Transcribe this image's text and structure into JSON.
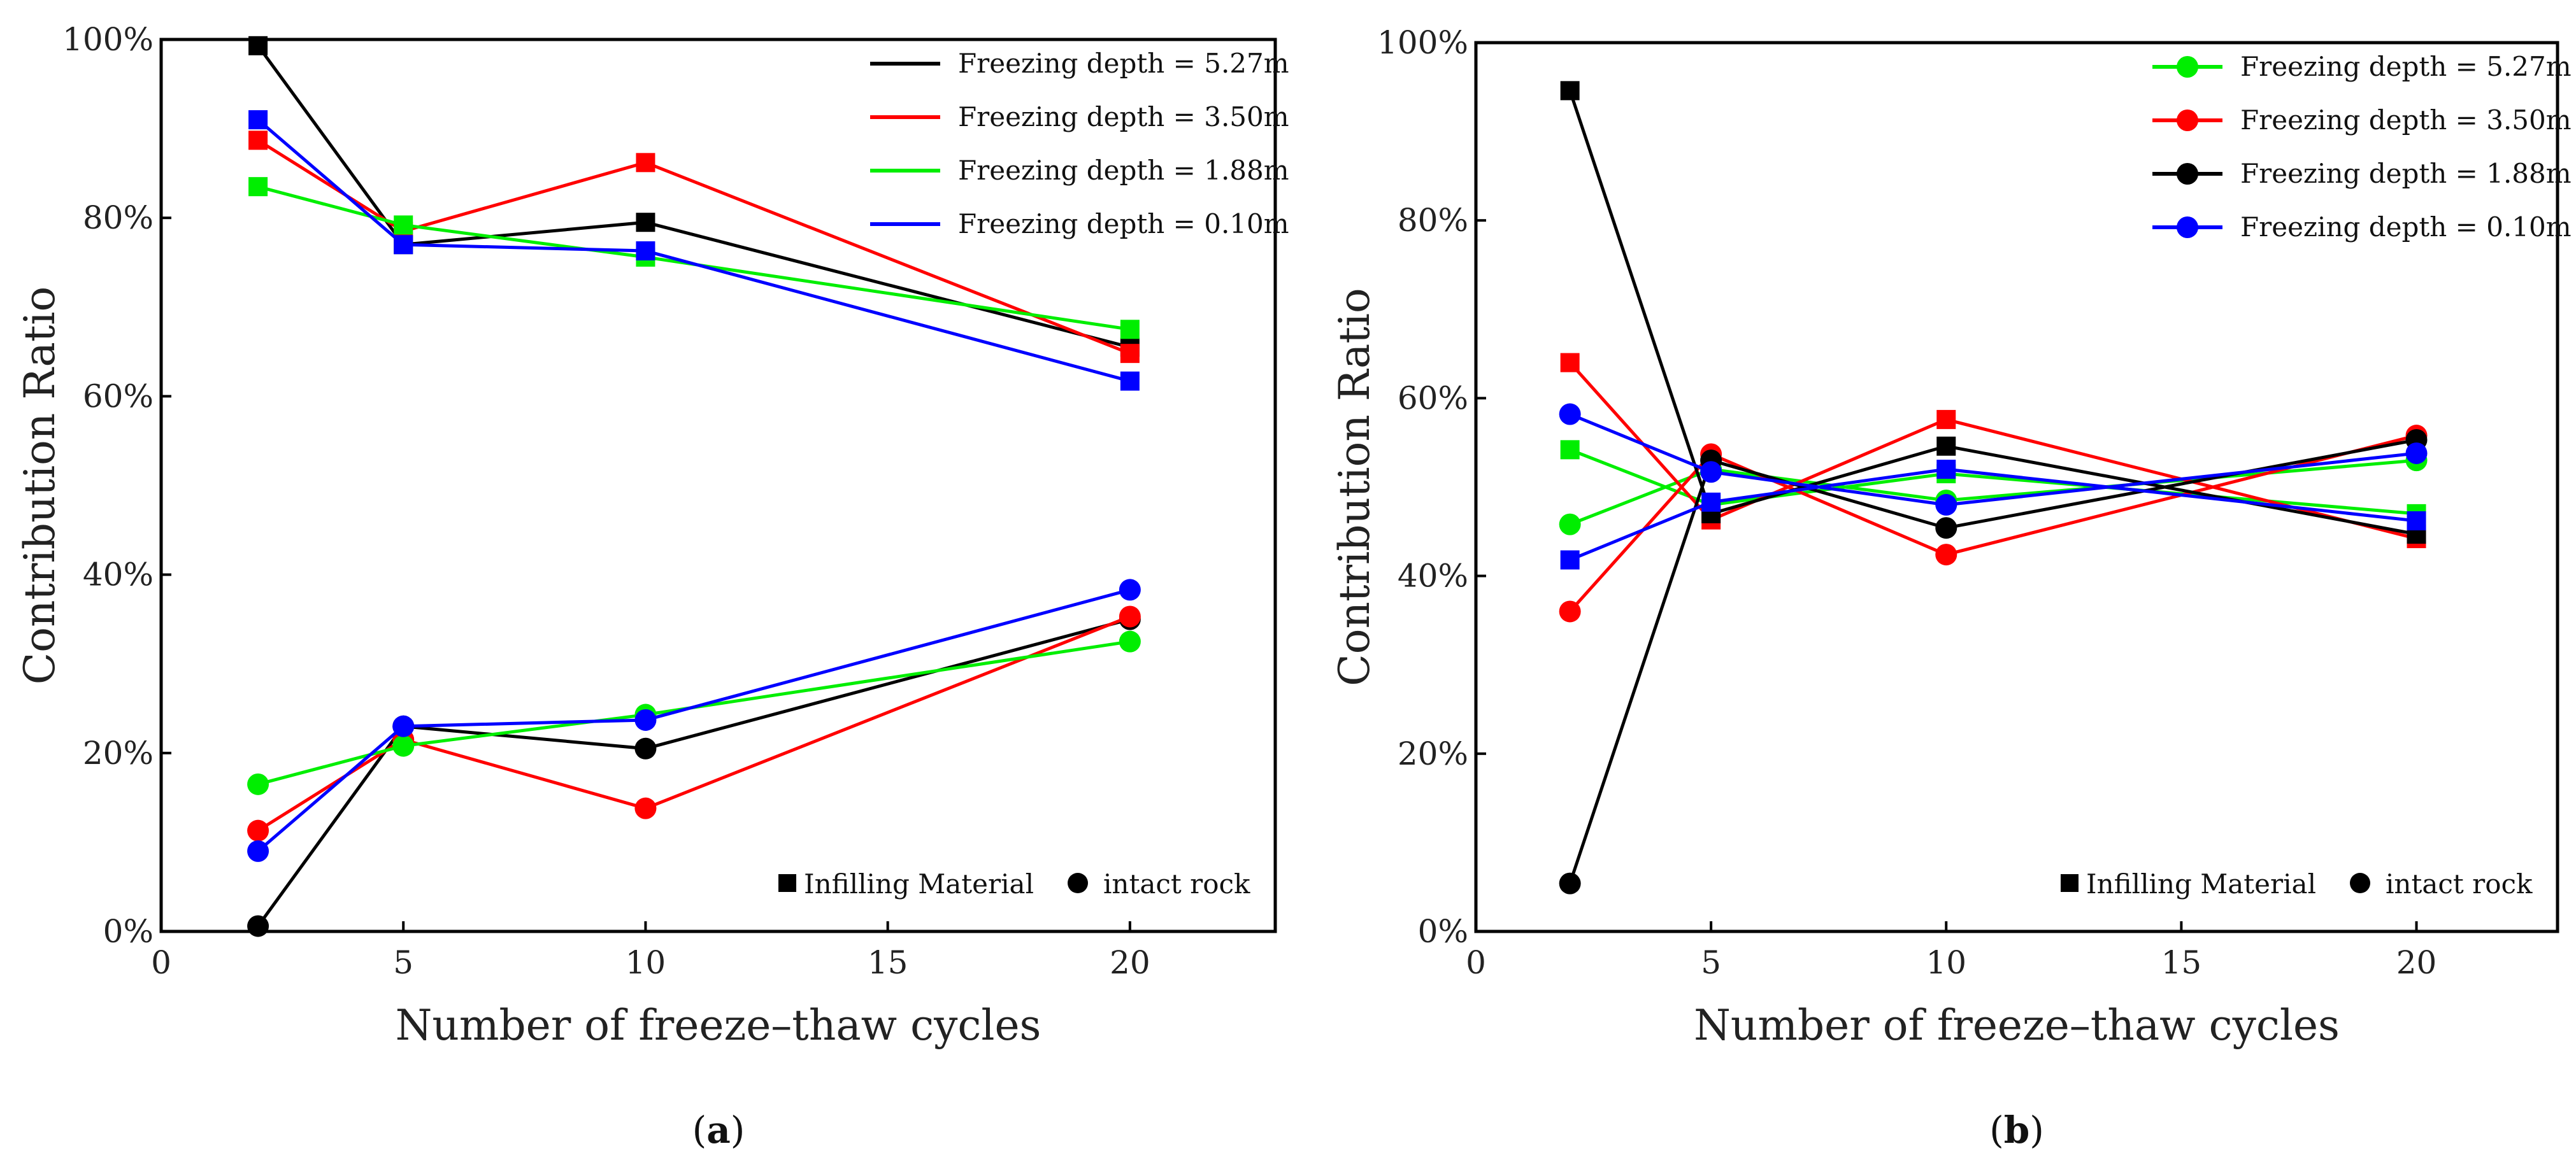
{
  "chart_data": [
    {
      "id": "a",
      "type": "line",
      "caption_prefix": "(",
      "caption": "a",
      "caption_suffix": ")",
      "xlabel": "Number of freeze–thaw cycles",
      "ylabel": "Contribution Ratio",
      "xlim": [
        0,
        23
      ],
      "ylim": [
        0,
        100
      ],
      "xticks": [
        0,
        5,
        10,
        15,
        20
      ],
      "yticks": [
        0,
        20,
        40,
        60,
        80,
        100
      ],
      "ytick_labels": [
        "0%",
        "20%",
        "40%",
        "60%",
        "80%",
        "100%"
      ],
      "legend_position": "top-right",
      "legend_marker": "line",
      "marker_legend": {
        "square": "Infilling Material",
        "circle": "intact rock"
      },
      "x": [
        2,
        5,
        10,
        20
      ],
      "series": [
        {
          "name": "Freezing depth = 5.27m",
          "color": "#000000",
          "infilling": [
            99.3,
            77.0,
            79.5,
            65.5
          ],
          "intact": [
            0.6,
            23.0,
            20.5,
            35.0
          ]
        },
        {
          "name": "Freezing depth = 3.50m",
          "color": "#ff0000",
          "infilling": [
            88.7,
            78.5,
            86.2,
            64.8
          ],
          "intact": [
            11.3,
            21.5,
            13.8,
            35.3
          ]
        },
        {
          "name": "Freezing depth = 1.88m",
          "color": "#00ee00",
          "infilling": [
            83.5,
            79.2,
            75.6,
            67.5
          ],
          "intact": [
            16.5,
            20.8,
            24.3,
            32.5
          ]
        },
        {
          "name": "Freezing depth = 0.10m",
          "color": "#0000ff",
          "infilling": [
            91.0,
            77.0,
            76.3,
            61.7
          ],
          "intact": [
            9.0,
            23.0,
            23.7,
            38.3
          ]
        }
      ]
    },
    {
      "id": "b",
      "type": "line",
      "caption_prefix": "(",
      "caption": "b",
      "caption_suffix": ")",
      "xlabel": "Number of freeze–thaw cycles",
      "ylabel": "Contribution Ratio",
      "xlim": [
        0,
        23
      ],
      "ylim": [
        0,
        100
      ],
      "xticks": [
        0,
        5,
        10,
        15,
        20
      ],
      "yticks": [
        0,
        20,
        40,
        60,
        80,
        100
      ],
      "ytick_labels": [
        "0%",
        "20%",
        "40%",
        "60%",
        "80%",
        "100%"
      ],
      "legend_position": "top-right",
      "legend_marker": "line-circle",
      "marker_legend": {
        "square": "Infilling Material",
        "circle": "intact rock"
      },
      "x": [
        2,
        5,
        10,
        20
      ],
      "series": [
        {
          "name": "Freezing depth = 5.27m",
          "color": "#00ee00",
          "infilling": [
            54.2,
            48.0,
            51.5,
            47.0
          ],
          "intact": [
            45.8,
            52.0,
            48.5,
            53.0
          ]
        },
        {
          "name": "Freezing depth = 3.50m",
          "color": "#ff0000",
          "infilling": [
            64.0,
            46.3,
            57.6,
            44.2
          ],
          "intact": [
            36.0,
            53.7,
            42.4,
            55.8
          ]
        },
        {
          "name": "Freezing depth = 1.88m",
          "color": "#000000",
          "infilling": [
            94.6,
            47.0,
            54.6,
            44.7
          ],
          "intact": [
            5.4,
            53.0,
            45.4,
            55.3
          ]
        },
        {
          "name": "Freezing depth = 0.10m",
          "color": "#0000ff",
          "infilling": [
            41.8,
            48.3,
            52.0,
            46.2
          ],
          "intact": [
            58.2,
            51.7,
            48.0,
            53.8
          ]
        }
      ]
    }
  ]
}
